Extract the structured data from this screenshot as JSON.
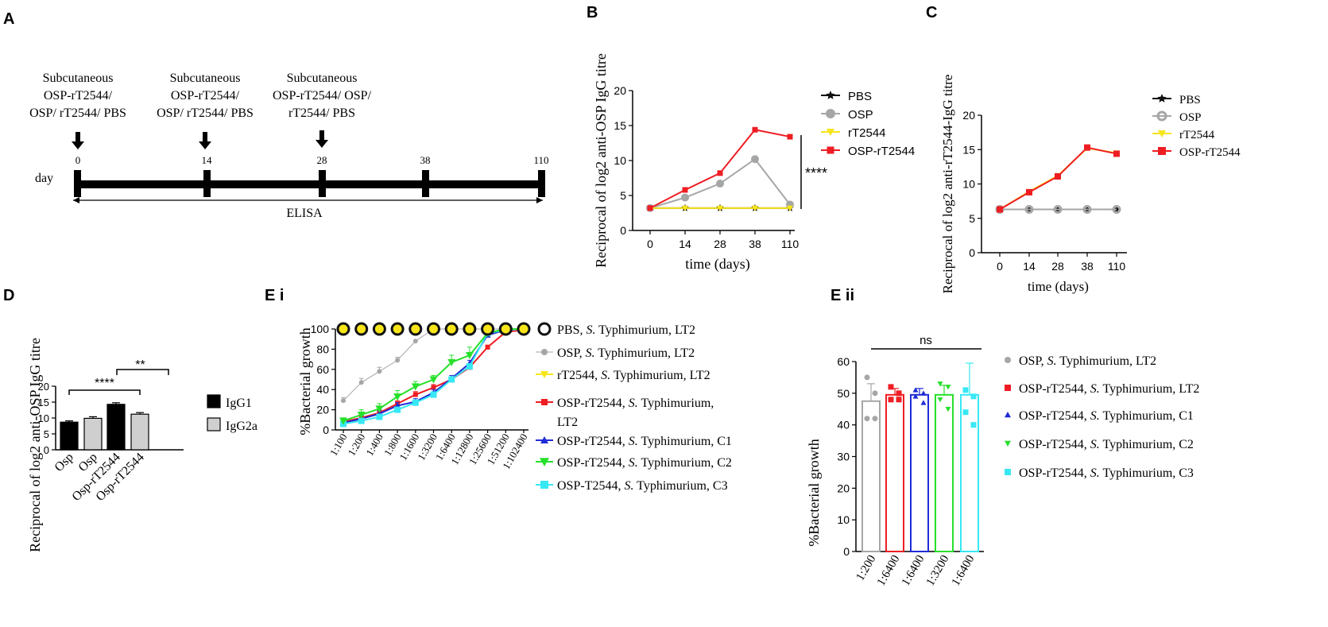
{
  "panel_labels": [
    "A",
    "B",
    "C",
    "D",
    "E i",
    "E ii"
  ],
  "colors": {
    "pbs": "#111111",
    "osp": "#a6a6a6",
    "rt": "#f7e51a",
    "ospr": "#ee1d23",
    "c1": "#1f2bd6",
    "c2": "#27e02a",
    "c3": "#37e8f4",
    "black": "#000000",
    "grey": "#cfcfcf"
  },
  "panelA": {
    "day_label": "day",
    "days": [
      "0",
      "14",
      "28",
      "38",
      "110"
    ],
    "injections": [
      {
        "lines": [
          "Subcutaneous",
          "OSP-rT2544/",
          "OSP/ rT2544/ PBS"
        ]
      },
      {
        "lines": [
          "Subcutaneous",
          "OSP-rT2544/",
          "OSP/ rT2544/ PBS"
        ]
      },
      {
        "lines": [
          "Subcutaneous",
          "OSP-rT2544/ OSP/",
          "rT2544/ PBS"
        ]
      }
    ],
    "span_label": "ELISA"
  },
  "chart_data": [
    {
      "id": "B",
      "type": "line",
      "categories": [
        "0",
        "14",
        "28",
        "38",
        "110"
      ],
      "ylabel": "Reciprocal of log2 anti-OSP IgG titre",
      "xlabel": "time (days)",
      "ylim": [
        0,
        20
      ],
      "yticks": [
        "0",
        "5",
        "10",
        "15",
        "20"
      ],
      "series": [
        {
          "name": "PBS",
          "values": [
            3.2,
            3.2,
            3.2,
            3.2,
            3.2
          ]
        },
        {
          "name": "OSP",
          "values": [
            3.2,
            4.7,
            6.7,
            10.2,
            3.7
          ]
        },
        {
          "name": "rT2544",
          "values": [
            3.2,
            3.2,
            3.2,
            3.2,
            3.2
          ]
        },
        {
          "name": "OSP-rT2544",
          "values": [
            3.2,
            5.8,
            8.2,
            14.4,
            13.4
          ]
        }
      ],
      "significance": "****"
    },
    {
      "id": "C",
      "type": "line",
      "categories": [
        "0",
        "14",
        "28",
        "38",
        "110"
      ],
      "ylabel": "Reciprocal of log2 anti-rT2544-IgG titre",
      "xlabel": "time (days)",
      "ylim": [
        0,
        20
      ],
      "yticks": [
        "0",
        "5",
        "10",
        "15",
        "20"
      ],
      "series": [
        {
          "name": "PBS",
          "values": [
            6.3,
            6.3,
            6.3,
            6.3,
            6.3
          ]
        },
        {
          "name": "OSP",
          "values": [
            6.3,
            6.3,
            6.3,
            6.3,
            6.3
          ]
        },
        {
          "name": "rT2544",
          "values": [
            6.3,
            8.9,
            11.2,
            15.2,
            14.5
          ]
        },
        {
          "name": "OSP-rT2544",
          "values": [
            6.3,
            8.8,
            11.1,
            15.3,
            14.4
          ]
        }
      ]
    },
    {
      "id": "D",
      "type": "bar",
      "categories": [
        "Osp",
        "Osp",
        "Osp-rT2544",
        "Osp-rT2544"
      ],
      "ylabel": "Reciprocal of log2 anti-OSP IgG titre",
      "ylim": [
        0,
        20
      ],
      "yticks": [
        "0",
        "5",
        "10",
        "15",
        "20"
      ],
      "values": [
        8.7,
        9.9,
        14.3,
        11.2
      ],
      "errors": [
        0.4,
        0.5,
        0.5,
        0.5
      ],
      "legend": [
        "IgG1",
        "IgG2a"
      ],
      "brackets": [
        {
          "from": 0,
          "to": 2,
          "label": "****"
        },
        {
          "from": 1,
          "to": 3,
          "label": "**"
        }
      ]
    },
    {
      "id": "Ei",
      "type": "line",
      "categories": [
        "1:100",
        "1:200",
        "1:400",
        "1:800",
        "1:1600",
        "1:3200",
        "1:6400",
        "1:12800",
        "1:25600",
        "1:51200",
        "1:102400"
      ],
      "ylabel": "%Bacterial growth",
      "ylim": [
        0,
        100
      ],
      "yticks": [
        "0",
        "20",
        "40",
        "60",
        "80",
        "100"
      ],
      "series": [
        {
          "name": "PBS, S. Typhimurium, LT2",
          "prefix": "PBS, ",
          "species": "S.",
          "suffix": " Typhimurium, LT2",
          "values": [
            100,
            100,
            100,
            100,
            100,
            100,
            100,
            100,
            100,
            100,
            100
          ]
        },
        {
          "name": "OSP, S. Typhimurium, LT2",
          "prefix": "OSP, ",
          "species": "S.",
          "suffix": " Typhimurium, LT2",
          "values": [
            29,
            47,
            58,
            69,
            88,
            100,
            100,
            100,
            100,
            100,
            100
          ],
          "errors": [
            3,
            4,
            4,
            3,
            0,
            0,
            0,
            0,
            0,
            0,
            0
          ]
        },
        {
          "name": "rT2544, S. Typhimurium, LT2",
          "prefix": "rT2544, ",
          "species": "S.",
          "suffix": " Typhimurium, LT2",
          "values": [
            100,
            100,
            100,
            100,
            100,
            100,
            100,
            100,
            100,
            100,
            100
          ]
        },
        {
          "name": "OSP-rT2544, S. Typhimurium, LT2",
          "prefix": "OSP-rT2544, ",
          "species": "S.",
          "suffix": " Typhimurium,",
          "line2": "LT2",
          "values": [
            8,
            12,
            17,
            26,
            35,
            42,
            50,
            62,
            82,
            97,
            99
          ],
          "errors": [
            2,
            3,
            3,
            3,
            3,
            3,
            2,
            2,
            2,
            1,
            1
          ]
        },
        {
          "name": "OSP-rT2544, S. Typhimurium, C1",
          "prefix": "OSP-rT2544, ",
          "species": "S.",
          "suffix": " Typhimurium, C1",
          "values": [
            7,
            11,
            16,
            24,
            28,
            37,
            51,
            66,
            94,
            99,
            100
          ],
          "errors": [
            3,
            3,
            3,
            3,
            3,
            3,
            3,
            3,
            3,
            1,
            0
          ]
        },
        {
          "name": "OSP-rT2544, S. Typhimurium, C2",
          "prefix": "OSP-rT2544, ",
          "species": "S.",
          "suffix": " Typhimurium, C2",
          "values": [
            9,
            15,
            21,
            33,
            43,
            50,
            67,
            74,
            96,
            100,
            100
          ],
          "errors": [
            3,
            5,
            5,
            6,
            5,
            4,
            7,
            8,
            3,
            0,
            0
          ]
        },
        {
          "name": "OSP-T2544, S. Typhimurium, C3",
          "prefix": "OSP-T2544, ",
          "species": "S.",
          "suffix": " Typhimurium, C3",
          "values": [
            6,
            9,
            13,
            20,
            27,
            35,
            50,
            63,
            96,
            99,
            100
          ],
          "errors": [
            2,
            2,
            2,
            2,
            2,
            2,
            2,
            2,
            2,
            1,
            0
          ]
        }
      ]
    },
    {
      "id": "Eii",
      "type": "bar",
      "categories": [
        "1:200",
        "1:6400",
        "1:6400",
        "1:3200",
        "1:6400"
      ],
      "ylabel": "%Bacterial growth",
      "ylim": [
        0,
        60
      ],
      "yticks": [
        "0",
        "10",
        "20",
        "30",
        "40",
        "50",
        "60"
      ],
      "values": [
        47.5,
        49.5,
        49.5,
        49.5,
        49.5
      ],
      "errors": [
        5.5,
        2,
        2,
        3,
        10
      ],
      "significance": "ns",
      "legend": [
        {
          "prefix": "OSP, ",
          "species": "S.",
          "suffix": " Typhimurium, LT2"
        },
        {
          "prefix": "OSP-rT2544, ",
          "species": "S.",
          "suffix": " Typhimurium, LT2"
        },
        {
          "prefix": "OSP-rT2544, ",
          "species": "S.",
          "suffix": " Typhimurium, C1"
        },
        {
          "prefix": "OSP-rT2544, ",
          "species": "S.",
          "suffix": " Typhimurium, C2"
        },
        {
          "prefix": "OSP-rT2544, ",
          "species": "S.",
          "suffix": " Typhimurium, C3"
        }
      ],
      "points": [
        [
          55,
          50,
          42,
          42
        ],
        [
          52,
          50,
          48,
          48
        ],
        [
          51,
          50,
          49,
          47
        ],
        [
          53,
          52,
          48,
          45
        ],
        [
          51,
          49,
          44,
          40
        ]
      ]
    }
  ]
}
